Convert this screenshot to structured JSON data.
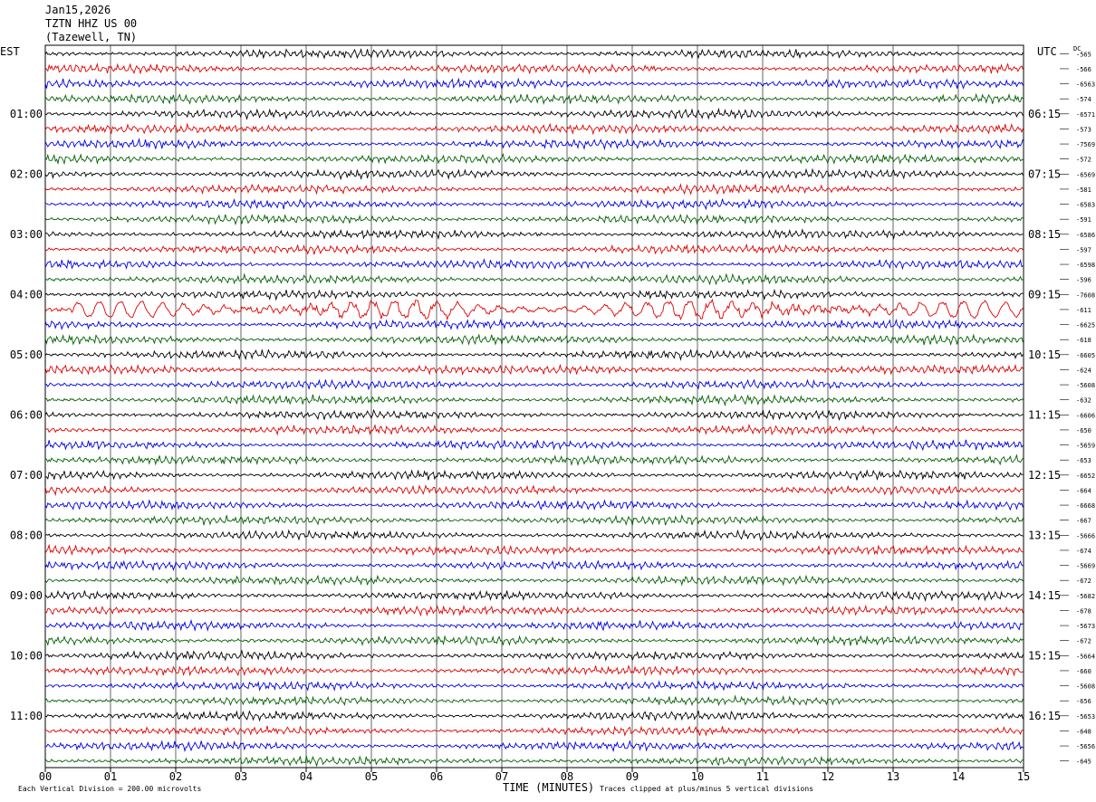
{
  "header": {
    "date": "Jan15,2026",
    "station": "TZTN HHZ US 00",
    "location": "(Tazewell, TN)"
  },
  "left_tz": "EST",
  "right_tz": "UTC",
  "dc_label": "DC",
  "footer": {
    "scale_note": "Each Vertical Division =  200.00 microvolts",
    "clip_note": "Traces clipped at plus/minus 5 vertical divisions"
  },
  "colors": {
    "line_colors": [
      "#000000",
      "#e00000",
      "#0000e0",
      "#006000"
    ],
    "grid": "#000000"
  },
  "chart_data": {
    "type": "line",
    "title": "",
    "xlabel": "TIME (MINUTES)",
    "ylabel": "",
    "xlim": [
      0,
      15
    ],
    "x_ticks": [
      "00",
      "01",
      "02",
      "03",
      "04",
      "05",
      "06",
      "07",
      "08",
      "09",
      "10",
      "11",
      "12",
      "13",
      "14",
      "15"
    ],
    "left_hour_labels": [
      "01:00",
      "02:00",
      "03:00",
      "04:00",
      "05:00",
      "06:00",
      "07:00",
      "08:00",
      "09:00",
      "10:00",
      "11:00"
    ],
    "right_hour_labels": [
      "06:15",
      "07:15",
      "08:15",
      "09:15",
      "10:15",
      "11:15",
      "12:15",
      "13:15",
      "14:15",
      "15:15",
      "16:15"
    ],
    "dc_offsets": [
      "-565",
      "-566",
      "-6563",
      "-574",
      "-6571",
      "-573",
      "-7569",
      "-572",
      "-6569",
      "-581",
      "-6583",
      "-591",
      "-6586",
      "-597",
      "-6598",
      "-596",
      "-7608",
      "-611",
      "-6625",
      "-618",
      "-6605",
      "-624",
      "-5608",
      "-632",
      "-6606",
      "-650",
      "-5659",
      "-653",
      "-6652",
      "-664",
      "-6668",
      "-667",
      "-5666",
      "-674",
      "-5669",
      "-672",
      "-5682",
      "-678",
      "-5673",
      "-672",
      "-5664",
      "-660",
      "-5608",
      "-656",
      "-5653",
      "-648",
      "-5656",
      "-645"
    ],
    "num_traces": 48,
    "rows_per_hour": 4,
    "series": [
      {
        "name": "",
        "color": "#000000"
      },
      {
        "name": "",
        "color": "#e00000"
      },
      {
        "name": "",
        "color": "#0000e0"
      },
      {
        "name": "",
        "color": "#006000"
      }
    ],
    "events": [
      {
        "trace": 17,
        "x_start": 0.4,
        "x_end": 15.0,
        "amplitude": "high",
        "note": ""
      }
    ],
    "grid": true
  }
}
